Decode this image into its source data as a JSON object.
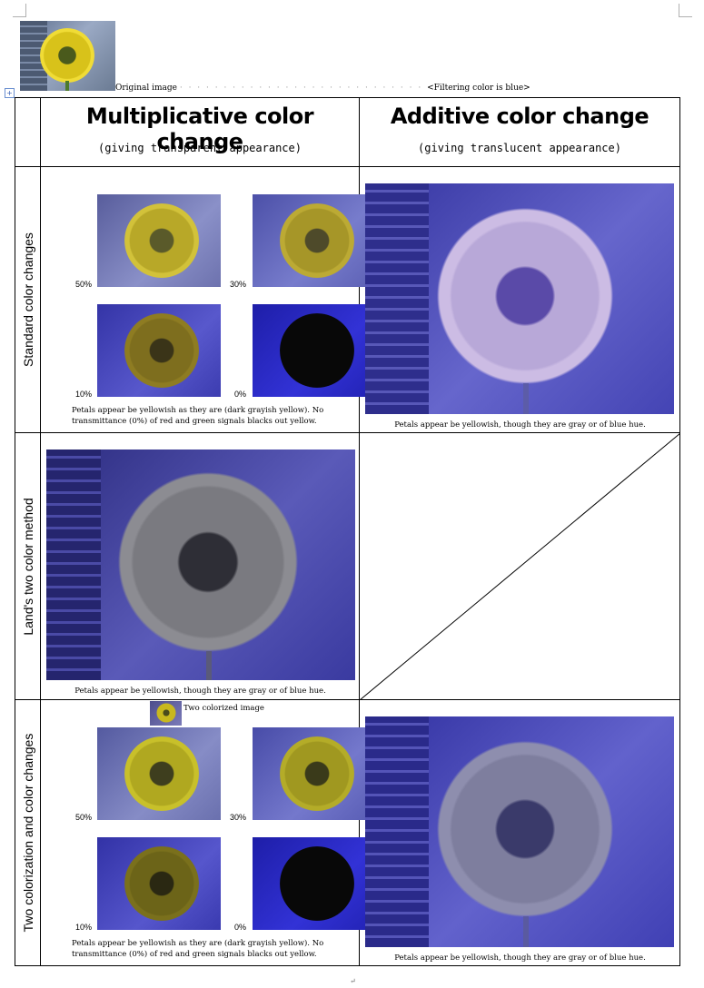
{
  "header": {
    "original_caption": "Original image",
    "filtering_caption": "<Filtering color is blue>"
  },
  "columns": {
    "mult_title": "Multiplicative color change",
    "mult_sub": "(giving transparent appearance)",
    "add_title": "Additive color change",
    "add_sub": "(giving translucent appearance)"
  },
  "rows": {
    "standard": "Standard color changes",
    "land": "Land's two color method",
    "two": "Two colorization and color changes"
  },
  "percentages": [
    "50%",
    "30%",
    "10%",
    "0%"
  ],
  "notes": {
    "mult_note": "Petals appear be yellowish as they are (dark grayish yellow). No transmittance (0%) of red and green signals blacks out yellow.",
    "add_note": "Petals appear be yellowish, though they are gray or of blue hue.",
    "land_note": "Petals appear be yellowish, though they are gray or of blue hue."
  },
  "two_colorized_caption": "Two colorized image",
  "colors": {
    "blue_filter": "#3d3dc8",
    "sunflower": "#e7cf1e",
    "border": "#000000"
  }
}
